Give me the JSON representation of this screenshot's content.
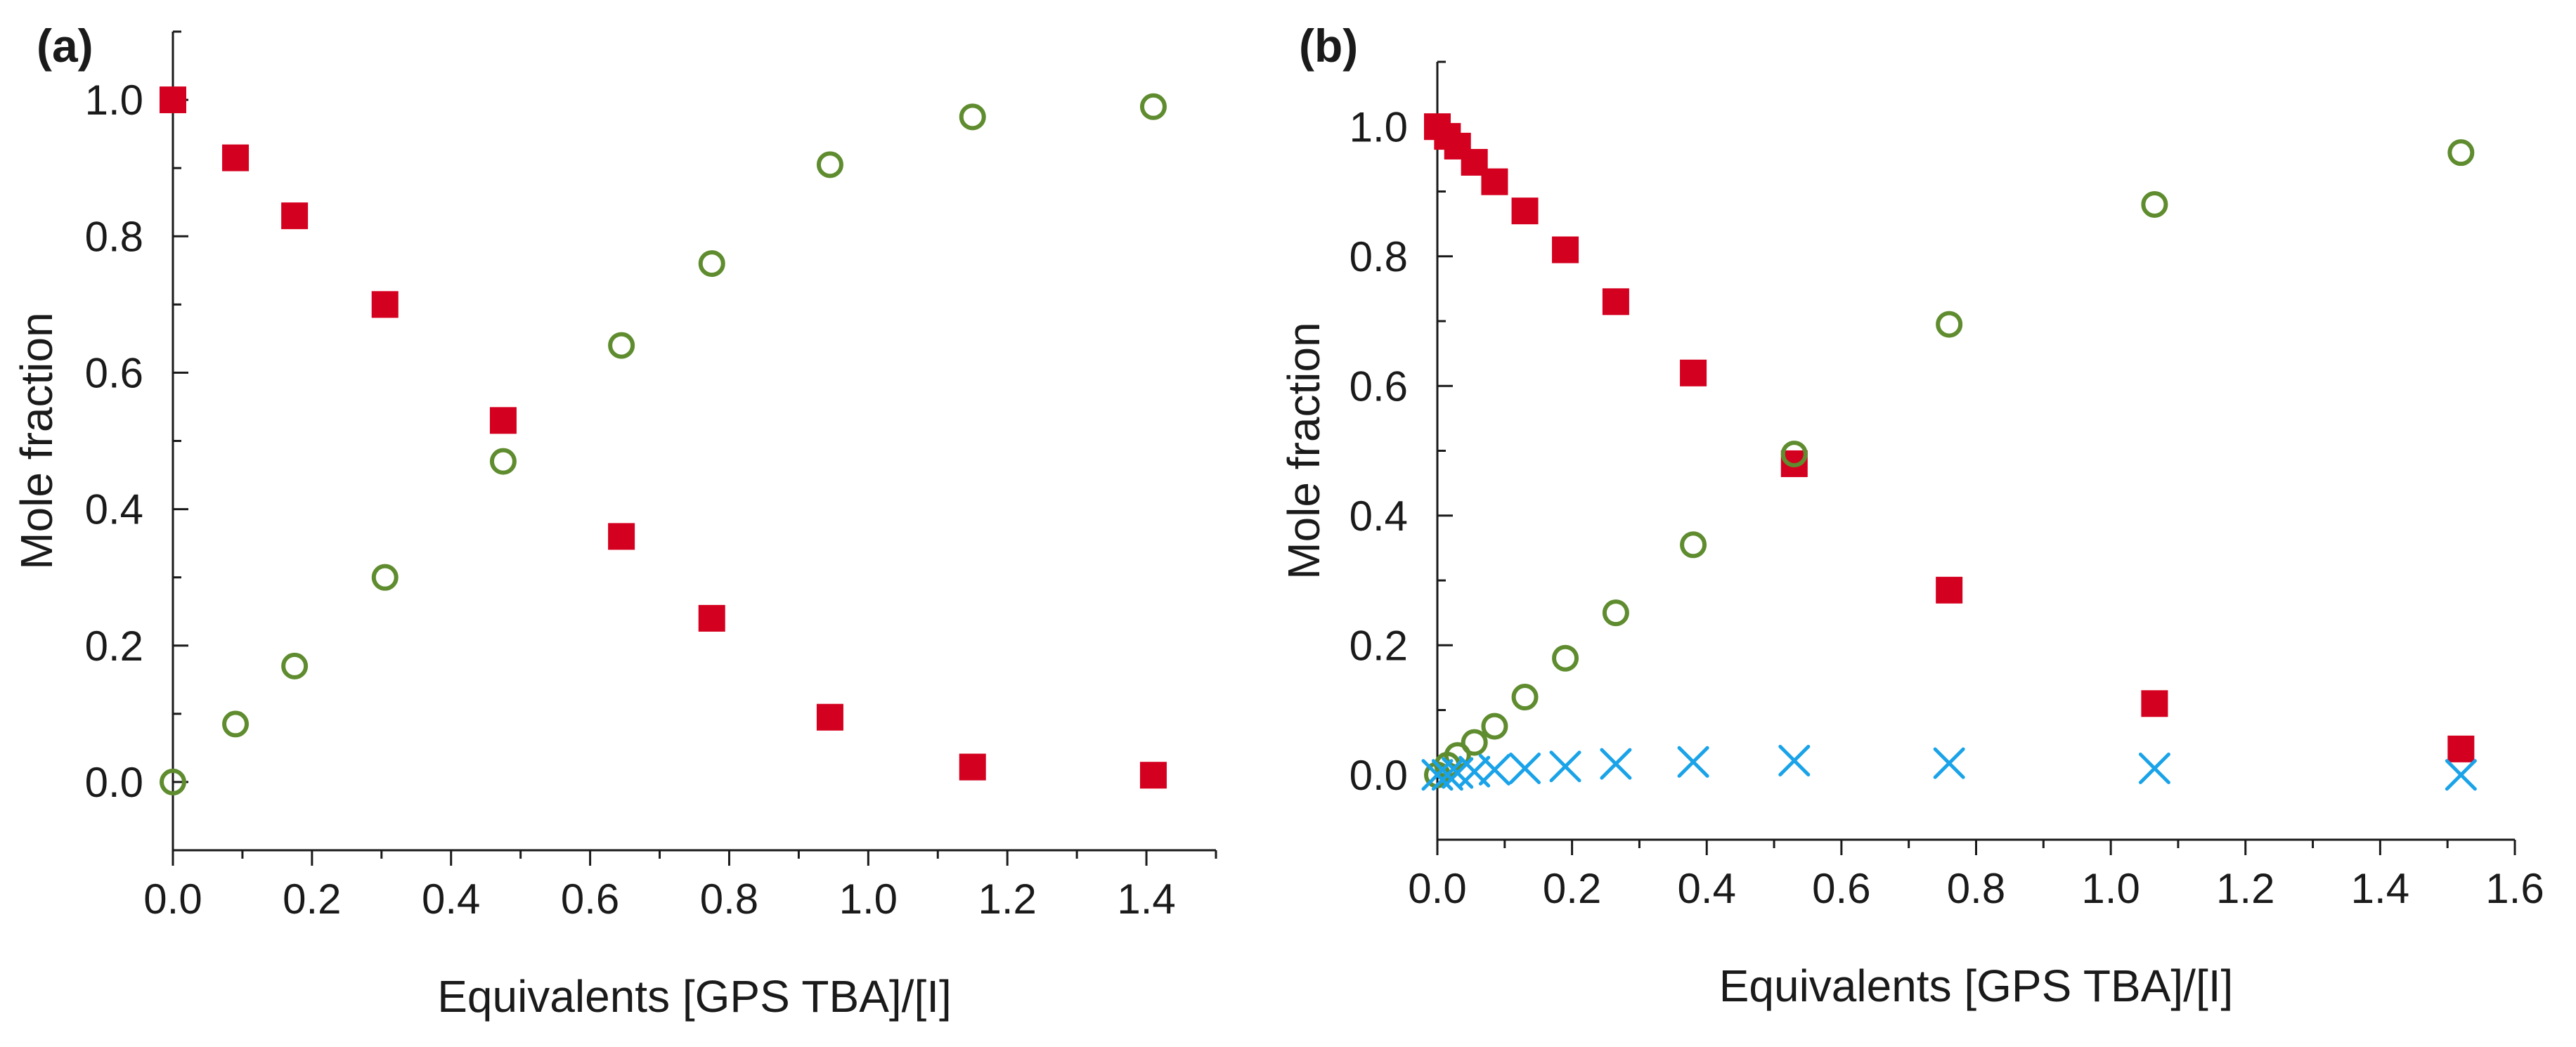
{
  "chart_data": [
    {
      "type": "scatter",
      "panel_label": "(a)",
      "xlabel": "Equivalents [GPS TBA]/[I]",
      "ylabel": "Mole fraction",
      "xlim": [
        0.0,
        1.5
      ],
      "ylim": [
        -0.1,
        1.1
      ],
      "x_ticks": [
        0.0,
        0.2,
        0.4,
        0.6,
        0.8,
        1.0,
        1.2,
        1.4
      ],
      "x_tick_labels": [
        "0.0",
        "0.2",
        "0.4",
        "0.6",
        "0.8",
        "1.0",
        "1.2",
        "1.4"
      ],
      "y_ticks": [
        0.0,
        0.2,
        0.4,
        0.6,
        0.8,
        1.0
      ],
      "y_tick_labels": [
        "0.0",
        "0.2",
        "0.4",
        "0.6",
        "0.8",
        "1.0"
      ],
      "grid": false,
      "legend": "none",
      "series": [
        {
          "name": "filled squares",
          "marker": "square",
          "color": "#d4001f",
          "points": [
            [
              0.0,
              1.0
            ],
            [
              0.09,
              0.915
            ],
            [
              0.175,
              0.83
            ],
            [
              0.305,
              0.7
            ],
            [
              0.475,
              0.53
            ],
            [
              0.645,
              0.36
            ],
            [
              0.775,
              0.24
            ],
            [
              0.945,
              0.095
            ],
            [
              1.15,
              0.022
            ],
            [
              1.41,
              0.01
            ]
          ]
        },
        {
          "name": "open circles",
          "marker": "circle",
          "color": "#5e8c2e",
          "points": [
            [
              0.0,
              0.0
            ],
            [
              0.09,
              0.085
            ],
            [
              0.175,
              0.17
            ],
            [
              0.305,
              0.3
            ],
            [
              0.475,
              0.47
            ],
            [
              0.645,
              0.64
            ],
            [
              0.775,
              0.76
            ],
            [
              0.945,
              0.905
            ],
            [
              1.15,
              0.975
            ],
            [
              1.41,
              0.99
            ]
          ]
        }
      ]
    },
    {
      "type": "scatter",
      "panel_label": "(b)",
      "xlabel": "Equivalents [GPS TBA]/[I]",
      "ylabel": "Mole fraction",
      "xlim": [
        0.0,
        1.6
      ],
      "ylim": [
        -0.1,
        1.1
      ],
      "x_ticks": [
        0.0,
        0.2,
        0.4,
        0.6,
        0.8,
        1.0,
        1.2,
        1.4,
        1.6
      ],
      "x_tick_labels": [
        "0.0",
        "0.2",
        "0.4",
        "0.6",
        "0.8",
        "1.0",
        "1.2",
        "1.4",
        "1.6"
      ],
      "y_ticks": [
        0.0,
        0.2,
        0.4,
        0.6,
        0.8,
        1.0
      ],
      "y_tick_labels": [
        "0.0",
        "0.2",
        "0.4",
        "0.6",
        "0.8",
        "1.0"
      ],
      "grid": false,
      "legend": "none",
      "series": [
        {
          "name": "filled squares",
          "marker": "square",
          "color": "#d4001f",
          "points": [
            [
              0.0,
              1.0
            ],
            [
              0.015,
              0.985
            ],
            [
              0.03,
              0.97
            ],
            [
              0.055,
              0.945
            ],
            [
              0.085,
              0.915
            ],
            [
              0.13,
              0.87
            ],
            [
              0.19,
              0.81
            ],
            [
              0.265,
              0.73
            ],
            [
              0.38,
              0.62
            ],
            [
              0.53,
              0.48
            ],
            [
              0.76,
              0.285
            ],
            [
              1.065,
              0.11
            ],
            [
              1.52,
              0.04
            ]
          ]
        },
        {
          "name": "open circles",
          "marker": "circle",
          "color": "#5e8c2e",
          "points": [
            [
              0.0,
              0.0
            ],
            [
              0.015,
              0.015
            ],
            [
              0.03,
              0.03
            ],
            [
              0.055,
              0.05
            ],
            [
              0.085,
              0.075
            ],
            [
              0.13,
              0.12
            ],
            [
              0.19,
              0.18
            ],
            [
              0.265,
              0.25
            ],
            [
              0.38,
              0.355
            ],
            [
              0.53,
              0.495
            ],
            [
              0.76,
              0.695
            ],
            [
              1.065,
              0.88
            ],
            [
              1.52,
              0.96
            ]
          ]
        },
        {
          "name": "crosses",
          "marker": "cross",
          "color": "#1aa3e8",
          "points": [
            [
              0.0,
              0.0
            ],
            [
              0.015,
              0.0
            ],
            [
              0.03,
              0.003
            ],
            [
              0.055,
              0.005
            ],
            [
              0.085,
              0.008
            ],
            [
              0.13,
              0.01
            ],
            [
              0.19,
              0.013
            ],
            [
              0.265,
              0.017
            ],
            [
              0.38,
              0.02
            ],
            [
              0.53,
              0.022
            ],
            [
              0.76,
              0.018
            ],
            [
              1.065,
              0.01
            ],
            [
              1.52,
              0.0
            ]
          ]
        }
      ]
    }
  ]
}
